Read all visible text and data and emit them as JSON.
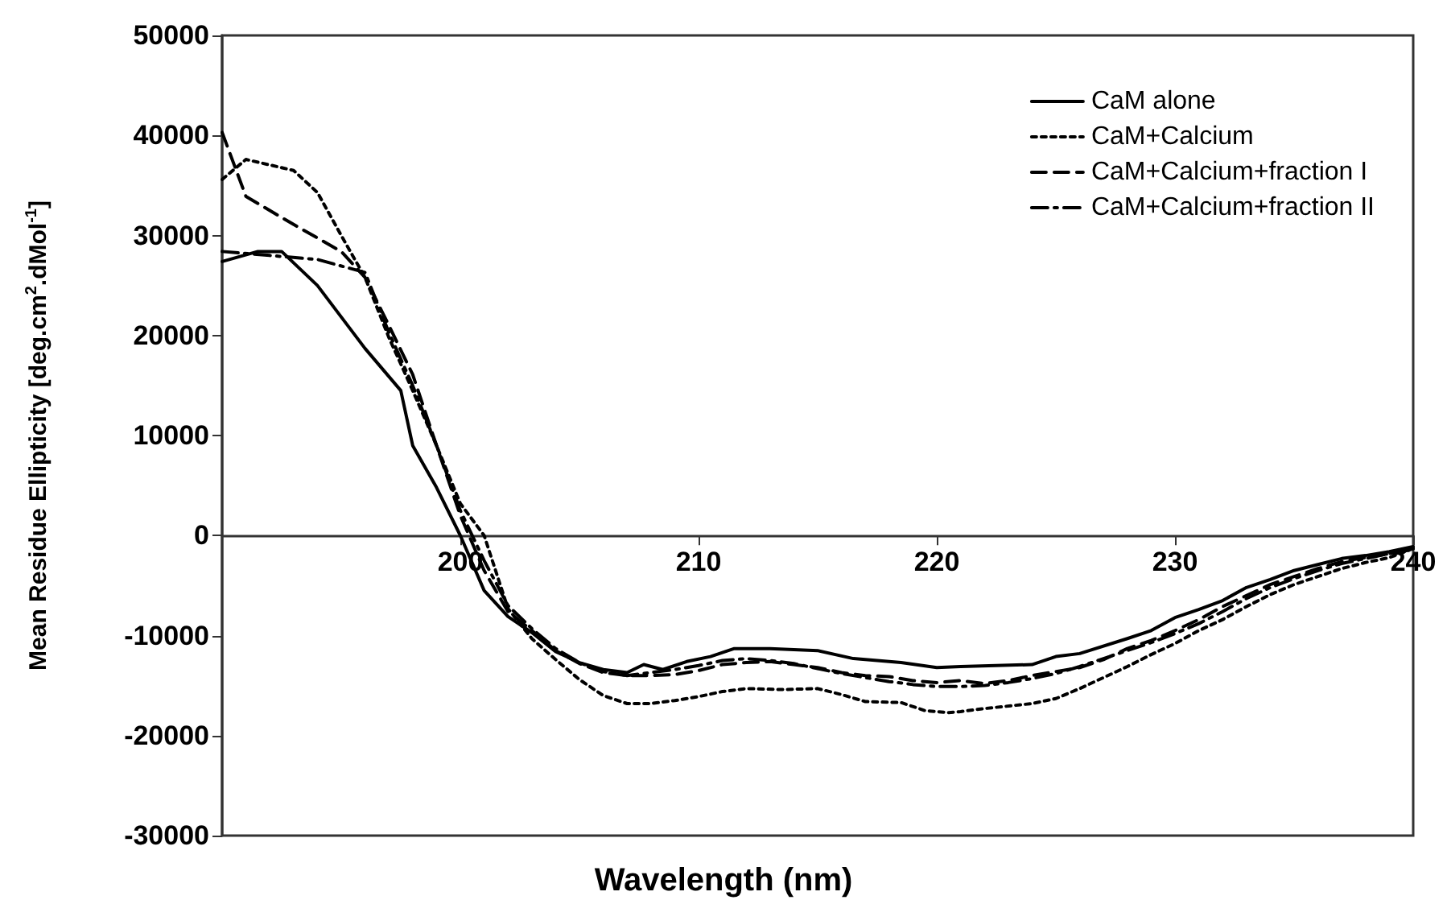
{
  "chart_data": {
    "type": "line",
    "xlabel": "Wavelength (nm)",
    "ylabel": "Mean Residue Ellipticity [deg.cm$^{2}$.dMol$^{-1}$]",
    "xlim": [
      190,
      240
    ],
    "xticks": [
      200,
      210,
      220,
      230,
      240
    ],
    "ylim": [
      -30000,
      50000
    ],
    "yticks": [
      -30000,
      -20000,
      -10000,
      0,
      10000,
      20000,
      30000,
      40000,
      50000
    ],
    "grid": false,
    "legend": "top right",
    "marker": "none",
    "series": [
      {
        "name": "CaM alone",
        "color": "#000000",
        "line_style": "solid",
        "x": [
          190,
          191.5,
          192.5,
          194,
          196,
          197.5,
          198,
          199,
          200,
          201,
          202,
          203,
          204,
          205,
          206,
          207,
          207.7,
          208.5,
          209.5,
          210.5,
          211.5,
          213,
          215,
          216.5,
          218.5,
          220,
          221,
          224,
          225,
          226,
          228,
          229,
          230,
          231,
          232,
          233,
          234,
          235,
          236,
          237,
          238,
          239,
          240
        ],
        "values": [
          27400,
          28400,
          28400,
          25000,
          18700,
          14500,
          9000,
          4800,
          0,
          -5500,
          -8100,
          -9700,
          -11600,
          -12700,
          -13400,
          -13700,
          -12900,
          -13400,
          -12600,
          -12100,
          -11300,
          -11300,
          -11500,
          -12300,
          -12700,
          -13200,
          -13100,
          -12900,
          -12100,
          -11800,
          -10300,
          -9500,
          -8200,
          -7400,
          -6500,
          -5200,
          -4400,
          -3500,
          -2900,
          -2300,
          -2000,
          -1600,
          -1100
        ]
      },
      {
        "name": "CaM+Calcium",
        "color": "#000000",
        "line_style": "dotted",
        "x": [
          190,
          191,
          193,
          194,
          195,
          196,
          197,
          198,
          199,
          200,
          201,
          202,
          203,
          204,
          205,
          206,
          207,
          208,
          209,
          210,
          211,
          212,
          213.5,
          215,
          216,
          217,
          218.5,
          219.5,
          220.5,
          221,
          222,
          224,
          225,
          226,
          227,
          228,
          229,
          230,
          231,
          232,
          233,
          234,
          235,
          236,
          237,
          238,
          239,
          240
        ],
        "values": [
          35600,
          37600,
          36500,
          34300,
          30000,
          25800,
          19800,
          14500,
          9000,
          3200,
          0,
          -7300,
          -10300,
          -12400,
          -14400,
          -16000,
          -16800,
          -16800,
          -16500,
          -16100,
          -15600,
          -15300,
          -15400,
          -15300,
          -15900,
          -16600,
          -16700,
          -17500,
          -17700,
          -17600,
          -17300,
          -16800,
          -16300,
          -15300,
          -14200,
          -13100,
          -11900,
          -10800,
          -9500,
          -8400,
          -7100,
          -5900,
          -4900,
          -4100,
          -3300,
          -2700,
          -2200,
          -1300
        ]
      },
      {
        "name": "CaM+Calcium+fraction I",
        "color": "#000000",
        "line_style": "dashed",
        "x": [
          190,
          191,
          193,
          195,
          196,
          197,
          198,
          199,
          200,
          201,
          202,
          203,
          204,
          205,
          206,
          207,
          208,
          209,
          210,
          211,
          212,
          213,
          214,
          215,
          216,
          217,
          218,
          219,
          220,
          221,
          222,
          223,
          224,
          225,
          226,
          227,
          228,
          229,
          230,
          231,
          232,
          233,
          234,
          235,
          236,
          237,
          238,
          239,
          240
        ],
        "values": [
          40300,
          33900,
          31100,
          28400,
          25800,
          21000,
          16100,
          9000,
          2000,
          -3500,
          -7600,
          -9500,
          -11500,
          -12800,
          -13700,
          -14000,
          -14000,
          -13900,
          -13500,
          -12900,
          -12700,
          -12600,
          -12900,
          -13200,
          -13700,
          -14000,
          -14100,
          -14500,
          -14700,
          -14500,
          -14800,
          -14500,
          -14000,
          -13600,
          -13200,
          -12400,
          -11300,
          -10500,
          -9500,
          -8400,
          -7100,
          -6000,
          -4900,
          -4100,
          -3300,
          -2600,
          -2200,
          -1800,
          -1400
        ]
      },
      {
        "name": "CaM+Calcium+fraction II",
        "color": "#000000",
        "line_style": "dashdot",
        "x": [
          190,
          192,
          194,
          196,
          197,
          198,
          199,
          200,
          201,
          202,
          203,
          204,
          205,
          206,
          207,
          208,
          209,
          210,
          211,
          212,
          213,
          214,
          215,
          216,
          217,
          218,
          219,
          220,
          221,
          222,
          223,
          224,
          225,
          226,
          227,
          228,
          229,
          230,
          231,
          232,
          233,
          234,
          235,
          236,
          237,
          238,
          239,
          240
        ],
        "values": [
          28400,
          28000,
          27600,
          26300,
          20300,
          15000,
          9000,
          2500,
          -2500,
          -7000,
          -9300,
          -11300,
          -12700,
          -13600,
          -14000,
          -13700,
          -13400,
          -13000,
          -12500,
          -12300,
          -12500,
          -12800,
          -13300,
          -13800,
          -14200,
          -14600,
          -14900,
          -15100,
          -15100,
          -15000,
          -14700,
          -14300,
          -13800,
          -13100,
          -12300,
          -11500,
          -10700,
          -9800,
          -8800,
          -7600,
          -6300,
          -5200,
          -4300,
          -3500,
          -2800,
          -2300,
          -1800,
          -1300
        ]
      }
    ]
  }
}
